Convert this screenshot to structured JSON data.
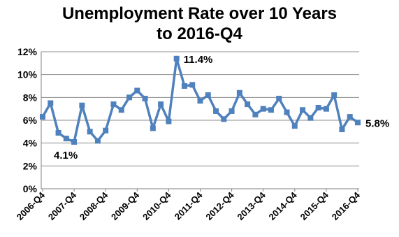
{
  "chart_data": {
    "type": "line",
    "title": "Unemployment Rate over 10 Years",
    "subtitle": "to 2016-Q4",
    "xlabel": "",
    "ylabel": "",
    "ylim": [
      0,
      12
    ],
    "yticks": [
      "0%",
      "2%",
      "4%",
      "6%",
      "8%",
      "10%",
      "12%"
    ],
    "xticks": [
      "2006-Q4",
      "2007-Q4",
      "2008-Q4",
      "2009-Q4",
      "2010-Q4",
      "2011-Q4",
      "2012-Q4",
      "2013-Q4",
      "2014-Q4",
      "2015-Q4",
      "2016-Q4"
    ],
    "grid": true,
    "legend": "none",
    "series_color": "#4f81bd",
    "values": [
      6.3,
      7.5,
      4.9,
      4.4,
      4.1,
      7.3,
      5.0,
      4.2,
      5.1,
      7.4,
      6.9,
      8.0,
      8.6,
      7.9,
      5.3,
      7.4,
      5.9,
      11.4,
      9.0,
      9.1,
      7.7,
      8.2,
      6.8,
      6.1,
      6.8,
      8.4,
      7.4,
      6.5,
      7.0,
      6.9,
      7.9,
      6.7,
      5.5,
      6.9,
      6.2,
      7.1,
      7.0,
      8.2,
      5.2,
      6.3,
      5.8
    ],
    "annotations": [
      {
        "index": 4,
        "text": "4.1%"
      },
      {
        "index": 17,
        "text": "11.4%"
      },
      {
        "index": 40,
        "text": "5.8%"
      }
    ]
  }
}
